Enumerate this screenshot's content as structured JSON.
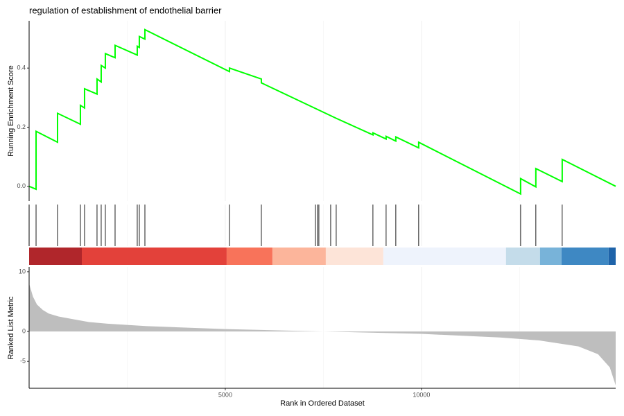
{
  "chart_data": {
    "type": "gsea",
    "title": "regulation of establishment of endothelial barrier",
    "xlabel": "Rank in Ordered Dataset",
    "xlim": [
      0,
      14950
    ],
    "xticks": [
      5000,
      10000
    ],
    "x_minor_grid": [
      2500,
      7500,
      12500
    ],
    "es_panel": {
      "ylabel": "Running Enrichment Score",
      "ylim": [
        -0.05,
        0.56
      ],
      "yticks": [
        {
          "value": 0.0,
          "label": "0.0"
        },
        {
          "value": 0.2,
          "label": "0.2"
        },
        {
          "value": 0.4,
          "label": "0.4"
        }
      ],
      "color": "#00ff00",
      "x": [
        0,
        177,
        177,
        724,
        724,
        1307,
        1307,
        1413,
        1413,
        1731,
        1731,
        1837,
        1837,
        1943,
        1943,
        2191,
        2191,
        2756,
        2756,
        2809,
        2809,
        2951,
        2951,
        5106,
        5106,
        5919,
        5919,
        7827,
        8763,
        8763,
        9099,
        9099,
        9346,
        9346,
        9929,
        9929,
        12527,
        12527,
        12915,
        12915,
        13587,
        13587,
        14950
      ],
      "values": [
        0.0,
        -0.01,
        0.186,
        0.149,
        0.247,
        0.21,
        0.274,
        0.265,
        0.33,
        0.312,
        0.363,
        0.353,
        0.409,
        0.4,
        0.449,
        0.435,
        0.477,
        0.444,
        0.474,
        0.47,
        0.507,
        0.498,
        0.53,
        0.388,
        0.4,
        0.363,
        0.35,
        0.23,
        0.174,
        0.181,
        0.16,
        0.169,
        0.153,
        0.167,
        0.13,
        0.149,
        -0.026,
        0.026,
        -0.002,
        0.06,
        0.016,
        0.091,
        0.0
      ]
    },
    "hits": [
      177,
      724,
      1307,
      1413,
      1731,
      1837,
      1943,
      2191,
      2756,
      2809,
      2951,
      5106,
      5919,
      7297,
      7350,
      7385,
      7686,
      7827,
      8763,
      9099,
      9346,
      9929,
      12527,
      12915,
      13587
    ],
    "color_band": {
      "breaks": [
        0,
        1343,
        5035,
        6201,
        7562,
        9028,
        12155,
        13021,
        13569,
        14770,
        14950
      ],
      "colors": [
        "#b0262b",
        "#e3413a",
        "#f8735a",
        "#fcb59b",
        "#fde4d8",
        "#eef3fc",
        "#c4dcea",
        "#78b3d9",
        "#3e88c3",
        "#1e63a9"
      ]
    },
    "rank_panel": {
      "ylabel": "Ranked List Metric",
      "ylim": [
        -9.5,
        10.8
      ],
      "yticks": [
        -5,
        0,
        10
      ],
      "color": "#bebebe",
      "x": [
        0,
        100,
        200,
        350,
        500,
        750,
        1000,
        1500,
        2000,
        3000,
        5000,
        7500,
        10000,
        12000,
        13000,
        14000,
        14500,
        14800,
        14950
      ],
      "values": [
        8,
        5.8,
        4.5,
        3.6,
        3,
        2.5,
        2.2,
        1.6,
        1.3,
        0.9,
        0.4,
        0,
        -0.4,
        -1.0,
        -1.5,
        -2.5,
        -3.8,
        -6,
        -9
      ]
    }
  }
}
